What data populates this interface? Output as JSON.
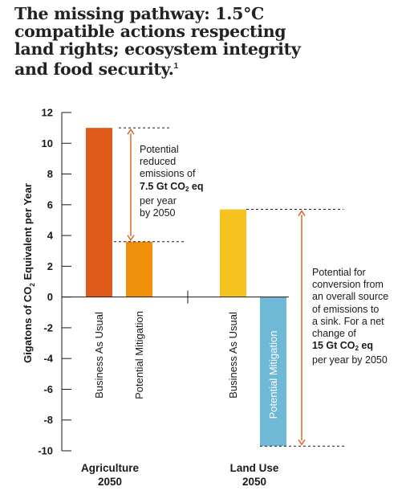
{
  "title": "The missing pathway: 1.5°C compatible actions respecting land rights; ecosystem integrity and food security.",
  "title_sup": "1",
  "chart_data": {
    "type": "bar",
    "ylabel_pre": "Gigatons of CO",
    "ylabel_sub": "2",
    "ylabel_post": " Equivalent per Year",
    "ylim": [
      -10,
      12
    ],
    "yticks": [
      "12",
      "10",
      "8",
      "6",
      "4",
      "2",
      "0",
      "-2",
      "-4",
      "-6",
      "-8",
      "-10"
    ],
    "groups": [
      {
        "name_line1": "Agriculture",
        "name_line2": "2050",
        "bars": [
          {
            "label": "Business As Usual",
            "value": 11.0,
            "color": "#e05a1a"
          },
          {
            "label": "Potential Mitigation",
            "value": 3.6,
            "color": "#f0900a"
          }
        ]
      },
      {
        "name_line1": "Land Use",
        "name_line2": "2050",
        "bars": [
          {
            "label": "Business As Usual",
            "value": 5.7,
            "color": "#f5c21f"
          },
          {
            "label": "Potential Mitigation",
            "value": -9.7,
            "color": "#6fb8d6"
          }
        ]
      }
    ],
    "annotations": {
      "agriculture": {
        "lines": [
          "Potential",
          "reduced",
          "emissions of"
        ],
        "bold_pre": "7.5 Gt CO",
        "bold_sub": "2",
        "bold_post": " eq",
        "tail": [
          "per year",
          "by 2050"
        ]
      },
      "land_use": {
        "lines": [
          "Potential for",
          "conversion from",
          "an overall source",
          "of emissions to",
          "a sink. For a net",
          "change of"
        ],
        "bold_pre": "15 Gt CO",
        "bold_sub": "2",
        "bold_post": " eq",
        "tail": [
          "per year by 2050"
        ]
      }
    },
    "arrow_color": "#e05a1a",
    "axis_color": "#1a1a1a"
  }
}
